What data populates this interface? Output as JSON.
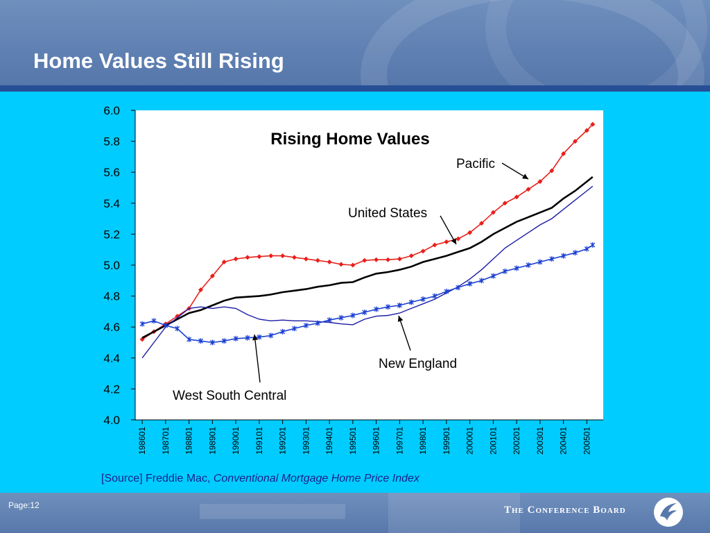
{
  "slide": {
    "title": "Home Values Still Rising",
    "source_prefix": "[Source] Freddie Mac, ",
    "source_citation": "Conventional Mortgage Home Price Index",
    "page_label": "Page:12",
    "brand": "The Conference Board"
  },
  "colors": {
    "background": "#00ccff",
    "header": "#6384b5",
    "header_rule": "#274f96",
    "pacific": "#e8201c",
    "united_states": "#000000",
    "new_england": "#1a1aa6",
    "west_south_central": "#1a3fd1"
  },
  "icons": {
    "logo": "conference-board-logo-icon"
  },
  "chart_data": {
    "type": "line",
    "title": "Rising Home Values",
    "xlabel": "",
    "ylabel": "",
    "ylim": [
      4.0,
      6.0
    ],
    "yticks": [
      "4.0",
      "4.2",
      "4.4",
      "4.6",
      "4.8",
      "5.0",
      "5.2",
      "5.4",
      "5.6",
      "5.8",
      "6.0"
    ],
    "xticks": [
      "198601",
      "198701",
      "198801",
      "198901",
      "199001",
      "199101",
      "199201",
      "199301",
      "199401",
      "199501",
      "199601",
      "199701",
      "199801",
      "199901",
      "200001",
      "200101",
      "200201",
      "200301",
      "200401",
      "200501"
    ],
    "x": [
      1986.0,
      1986.5,
      1987.0,
      1987.5,
      1988.0,
      1988.5,
      1989.0,
      1989.5,
      1990.0,
      1990.5,
      1991.0,
      1991.5,
      1992.0,
      1992.5,
      1993.0,
      1993.5,
      1994.0,
      1994.5,
      1995.0,
      1995.5,
      1996.0,
      1996.5,
      1997.0,
      1997.5,
      1998.0,
      1998.5,
      1999.0,
      1999.5,
      2000.0,
      2000.5,
      2001.0,
      2001.5,
      2002.0,
      2002.5,
      2003.0,
      2003.5,
      2004.0,
      2004.5,
      2005.0,
      2005.25
    ],
    "grid": false,
    "legend": "none",
    "series": [
      {
        "name": "Pacific",
        "color": "#e8201c",
        "marker": "diamond",
        "values": [
          4.52,
          4.57,
          4.62,
          4.67,
          4.72,
          4.84,
          4.93,
          5.02,
          5.04,
          5.05,
          5.055,
          5.06,
          5.06,
          5.05,
          5.04,
          5.03,
          5.02,
          5.005,
          5.0,
          5.03,
          5.035,
          5.035,
          5.04,
          5.06,
          5.09,
          5.13,
          5.15,
          5.17,
          5.21,
          5.27,
          5.34,
          5.4,
          5.44,
          5.49,
          5.54,
          5.61,
          5.72,
          5.8,
          5.87,
          5.91
        ]
      },
      {
        "name": "United States",
        "color": "#000000",
        "marker": "none",
        "values": [
          4.53,
          4.57,
          4.61,
          4.65,
          4.69,
          4.71,
          4.74,
          4.77,
          4.79,
          4.795,
          4.8,
          4.81,
          4.825,
          4.835,
          4.845,
          4.86,
          4.87,
          4.885,
          4.89,
          4.92,
          4.945,
          4.955,
          4.97,
          4.99,
          5.02,
          5.04,
          5.06,
          5.085,
          5.11,
          5.15,
          5.2,
          5.24,
          5.28,
          5.31,
          5.34,
          5.37,
          5.43,
          5.48,
          5.54,
          5.57
        ]
      },
      {
        "name": "New England",
        "color": "#1a1aa6",
        "marker": "none",
        "values": [
          4.4,
          4.5,
          4.6,
          4.66,
          4.72,
          4.73,
          4.72,
          4.73,
          4.72,
          4.68,
          4.65,
          4.64,
          4.645,
          4.64,
          4.64,
          4.635,
          4.63,
          4.62,
          4.615,
          4.65,
          4.67,
          4.675,
          4.69,
          4.72,
          4.75,
          4.78,
          4.82,
          4.86,
          4.91,
          4.97,
          5.04,
          5.11,
          5.16,
          5.21,
          5.26,
          5.3,
          5.36,
          5.42,
          5.48,
          5.51
        ]
      },
      {
        "name": "West South Central",
        "color": "#1a3fd1",
        "marker": "star",
        "values": [
          4.62,
          4.64,
          4.61,
          4.59,
          4.52,
          4.51,
          4.5,
          4.51,
          4.525,
          4.53,
          4.535,
          4.545,
          4.57,
          4.59,
          4.61,
          4.625,
          4.645,
          4.66,
          4.675,
          4.695,
          4.715,
          4.73,
          4.74,
          4.76,
          4.78,
          4.8,
          4.83,
          4.855,
          4.88,
          4.9,
          4.93,
          4.96,
          4.98,
          5.0,
          5.02,
          5.04,
          5.06,
          5.08,
          5.105,
          5.13
        ]
      }
    ],
    "annotations": [
      {
        "text": "Pacific",
        "series": "Pacific"
      },
      {
        "text": "United States",
        "series": "United States"
      },
      {
        "text": "New England",
        "series": "New England"
      },
      {
        "text": "West South Central",
        "series": "West South Central"
      }
    ]
  }
}
